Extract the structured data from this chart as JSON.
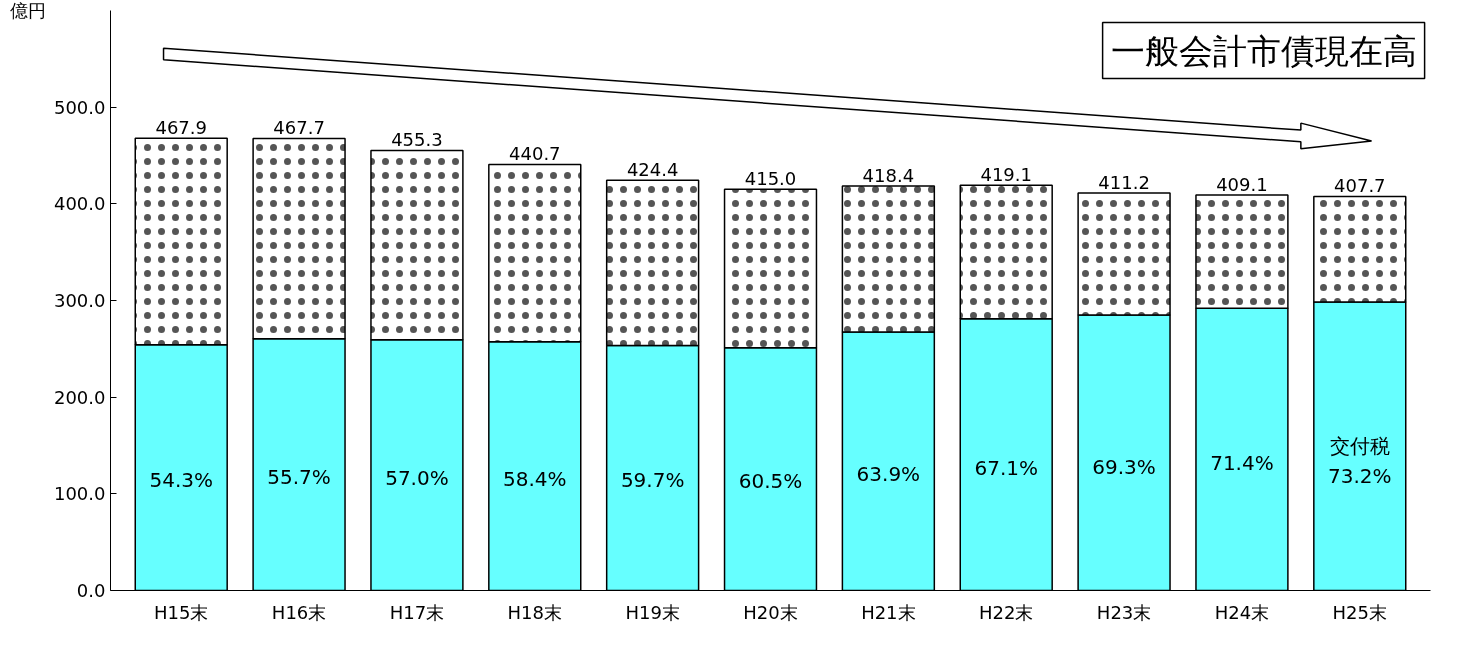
{
  "chart_data": {
    "type": "bar",
    "stacked": true,
    "title": "一般会計市債現在高",
    "ylabel": "億円",
    "categories": [
      "H15末",
      "H16末",
      "H17末",
      "H18末",
      "H19末",
      "H20末",
      "H21末",
      "H22末",
      "H23末",
      "H24末",
      "H25末"
    ],
    "series": [
      {
        "color": "#66ffff",
        "values": [
          254.1,
          260.5,
          259.5,
          257.4,
          253.4,
          251.1,
          267.4,
          281.2,
          285.0,
          292.1,
          298.4
        ]
      },
      {
        "color": "#ffffff",
        "values": [
          213.8,
          207.2,
          195.8,
          183.3,
          171.0,
          163.9,
          151.0,
          137.9,
          126.2,
          117.0,
          109.3
        ]
      }
    ],
    "annotations": [
      "54.3%",
      "55.7%",
      "57.0%",
      "58.4%",
      "59.7%",
      "60.5%",
      "63.9%",
      "67.1%",
      "69.3%",
      "71.4%",
      "交付税",
      "73.2%"
    ],
    "totals": [
      "467.9",
      "467.7",
      "455.3",
      "440.7",
      "424.4",
      "415.0",
      "418.4",
      "419.1",
      "411.2",
      "409.1",
      "407.7"
    ],
    "ylim": [
      0,
      600
    ],
    "yticks": [
      {
        "value": 0,
        "label": "0.0"
      },
      {
        "value": 100,
        "label": "100.0"
      },
      {
        "value": 200,
        "label": "200.0"
      },
      {
        "value": 300,
        "label": "300.0"
      },
      {
        "value": 400,
        "label": "400.0"
      },
      {
        "value": 500,
        "label": "500.0"
      }
    ],
    "grid": false
  }
}
